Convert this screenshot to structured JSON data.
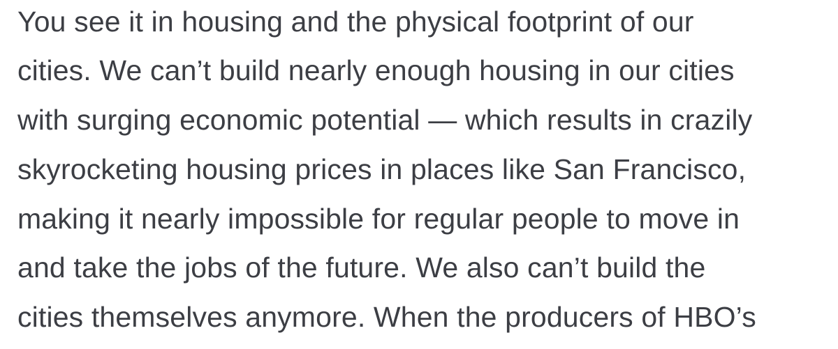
{
  "article": {
    "lines": [
      "You see it in housing and the physical footprint of our",
      "cities. We can’t build nearly enough housing in our cities",
      "with surging economic potential — which results in crazily",
      "skyrocketing housing prices in places like San Francisco,",
      "making it nearly impossible for regular people to move in",
      "and take the jobs of the future. We also can’t build the",
      "cities themselves anymore. When the producers of HBO’s"
    ]
  },
  "colors": {
    "text": "#3c3e44",
    "background": "#ffffff"
  }
}
